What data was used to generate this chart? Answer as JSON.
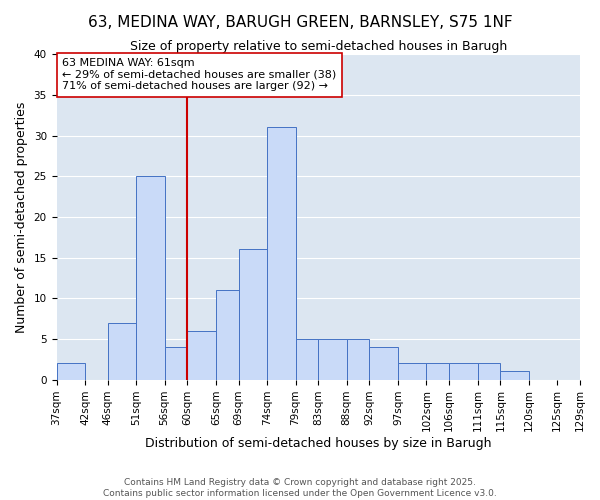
{
  "title": "63, MEDINA WAY, BARUGH GREEN, BARNSLEY, S75 1NF",
  "subtitle": "Size of property relative to semi-detached houses in Barugh",
  "xlabel": "Distribution of semi-detached houses by size in Barugh",
  "ylabel": "Number of semi-detached properties",
  "bin_edges": [
    37,
    42,
    46,
    51,
    56,
    60,
    65,
    69,
    74,
    79,
    83,
    88,
    92,
    97,
    102,
    106,
    111,
    115,
    120,
    125,
    129
  ],
  "bar_heights": [
    2,
    0,
    7,
    25,
    4,
    6,
    11,
    16,
    31,
    5,
    5,
    5,
    4,
    2,
    2,
    2,
    2,
    1,
    0,
    0
  ],
  "bar_color": "#c9daf8",
  "bar_edge_color": "#4472c4",
  "vline_x": 60,
  "vline_color": "#cc0000",
  "annotation_title": "63 MEDINA WAY: 61sqm",
  "annotation_line1": "← 29% of semi-detached houses are smaller (38)",
  "annotation_line2": "71% of semi-detached houses are larger (92) →",
  "annotation_box_color": "#ffffff",
  "annotation_box_edge": "#cc0000",
  "ylim": [
    0,
    40
  ],
  "yticks": [
    0,
    5,
    10,
    15,
    20,
    25,
    30,
    35,
    40
  ],
  "grid_color": "#ffffff",
  "background_color": "#dce6f1",
  "fig_background": "#ffffff",
  "footer1": "Contains HM Land Registry data © Crown copyright and database right 2025.",
  "footer2": "Contains public sector information licensed under the Open Government Licence v3.0.",
  "title_fontsize": 11,
  "subtitle_fontsize": 9,
  "axis_label_fontsize": 9,
  "tick_fontsize": 7.5,
  "annotation_fontsize": 8,
  "footer_fontsize": 6.5
}
